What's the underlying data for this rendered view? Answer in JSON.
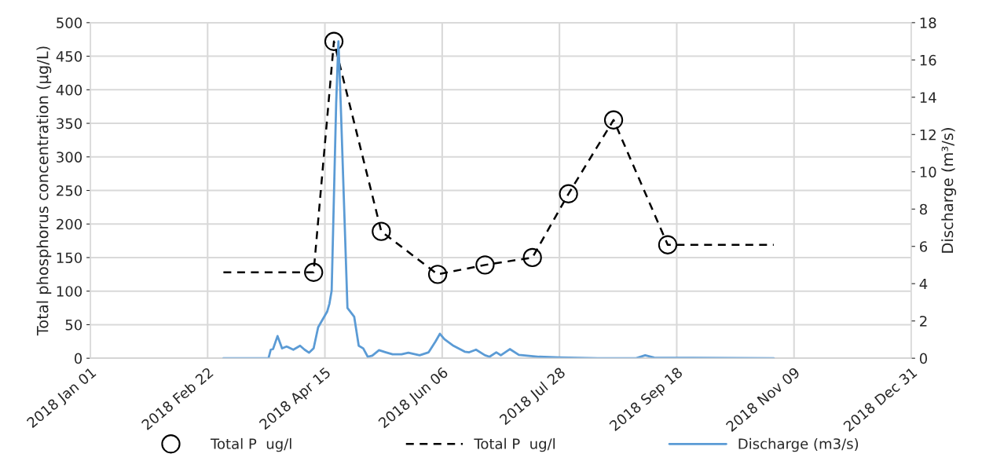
{
  "chart_data": {
    "type": "line",
    "ylabel": "Total phosphorus concentration (µg/L)",
    "y2label": "Discharge (m³/s)",
    "xlim": [
      "2018-01-01",
      "2018-12-31"
    ],
    "xticks": [
      {
        "value": "2018-01-01",
        "label": "2018 Jan 01"
      },
      {
        "value": "2018-02-22",
        "label": "2018 Feb 22"
      },
      {
        "value": "2018-04-15",
        "label": "2018 Apr 15"
      },
      {
        "value": "2018-06-06",
        "label": "2018 Jun 06"
      },
      {
        "value": "2018-07-28",
        "label": "2018 Jul 28"
      },
      {
        "value": "2018-09-18",
        "label": "2018 Sep 18"
      },
      {
        "value": "2018-11-09",
        "label": "2018 Nov 09"
      },
      {
        "value": "2018-12-31",
        "label": "2018 Dec 31"
      }
    ],
    "ylim": [
      0,
      500
    ],
    "yticks": [
      0,
      50,
      100,
      150,
      200,
      250,
      300,
      350,
      400,
      450,
      500
    ],
    "y2lim": [
      0,
      18
    ],
    "y2ticks": [
      0,
      2,
      4,
      6,
      8,
      10,
      12,
      14,
      16,
      18
    ],
    "grid": true,
    "legend": "bottom",
    "series": [
      {
        "name": "Total P  ug/l",
        "type": "scatter",
        "marker": "circle",
        "color": "#000000",
        "x": [
          "2018-04-10",
          "2018-04-19",
          "2018-05-10",
          "2018-06-04",
          "2018-06-25",
          "2018-07-16",
          "2018-08-01",
          "2018-08-21",
          "2018-09-14"
        ],
        "values": [
          128,
          472,
          189,
          125,
          139,
          150,
          245,
          355,
          169
        ]
      },
      {
        "name": "Total P  ug/l",
        "line_style": "dashed",
        "color": "#000000",
        "x": [
          "2018-03-01",
          "2018-04-10",
          "2018-04-19",
          "2018-05-10",
          "2018-06-04",
          "2018-06-25",
          "2018-07-16",
          "2018-08-01",
          "2018-08-21",
          "2018-09-14",
          "2018-10-31"
        ],
        "values": [
          128,
          128,
          472,
          189,
          125,
          139,
          150,
          245,
          355,
          169,
          169
        ]
      },
      {
        "name": "Discharge (m3/s)",
        "line_style": "solid",
        "axis": "y2",
        "color": "#5b9bd5",
        "x": [
          "2018-03-01",
          "2018-03-21",
          "2018-03-22",
          "2018-03-23",
          "2018-03-25",
          "2018-03-27",
          "2018-03-29",
          "2018-03-30",
          "2018-04-01",
          "2018-04-04",
          "2018-04-06",
          "2018-04-08",
          "2018-04-10",
          "2018-04-12",
          "2018-04-16",
          "2018-04-17",
          "2018-04-18",
          "2018-04-20",
          "2018-04-21",
          "2018-04-22",
          "2018-04-25",
          "2018-04-28",
          "2018-04-30",
          "2018-05-02",
          "2018-05-04",
          "2018-05-06",
          "2018-05-09",
          "2018-05-12",
          "2018-05-15",
          "2018-05-19",
          "2018-05-22",
          "2018-05-27",
          "2018-05-31",
          "2018-06-03",
          "2018-06-05",
          "2018-06-07",
          "2018-06-11",
          "2018-06-16",
          "2018-06-18",
          "2018-06-21",
          "2018-06-25",
          "2018-06-27",
          "2018-06-30",
          "2018-07-02",
          "2018-07-06",
          "2018-07-10",
          "2018-07-19",
          "2018-07-28",
          "2018-08-14",
          "2018-08-31",
          "2018-09-04",
          "2018-09-08",
          "2018-10-31"
        ],
        "values": [
          0,
          0,
          0.46,
          0.49,
          1.19,
          0.53,
          0.63,
          0.58,
          0.46,
          0.67,
          0.46,
          0.3,
          0.53,
          1.66,
          2.5,
          2.92,
          3.63,
          13.7,
          17.0,
          13.7,
          2.7,
          2.22,
          0.67,
          0.53,
          0.08,
          0.14,
          0.43,
          0.32,
          0.21,
          0.21,
          0.3,
          0.16,
          0.32,
          0.89,
          1.31,
          1.02,
          0.67,
          0.35,
          0.32,
          0.46,
          0.16,
          0.08,
          0.32,
          0.16,
          0.49,
          0.18,
          0.08,
          0.04,
          0,
          0,
          0.16,
          0.03,
          0
        ]
      }
    ]
  }
}
